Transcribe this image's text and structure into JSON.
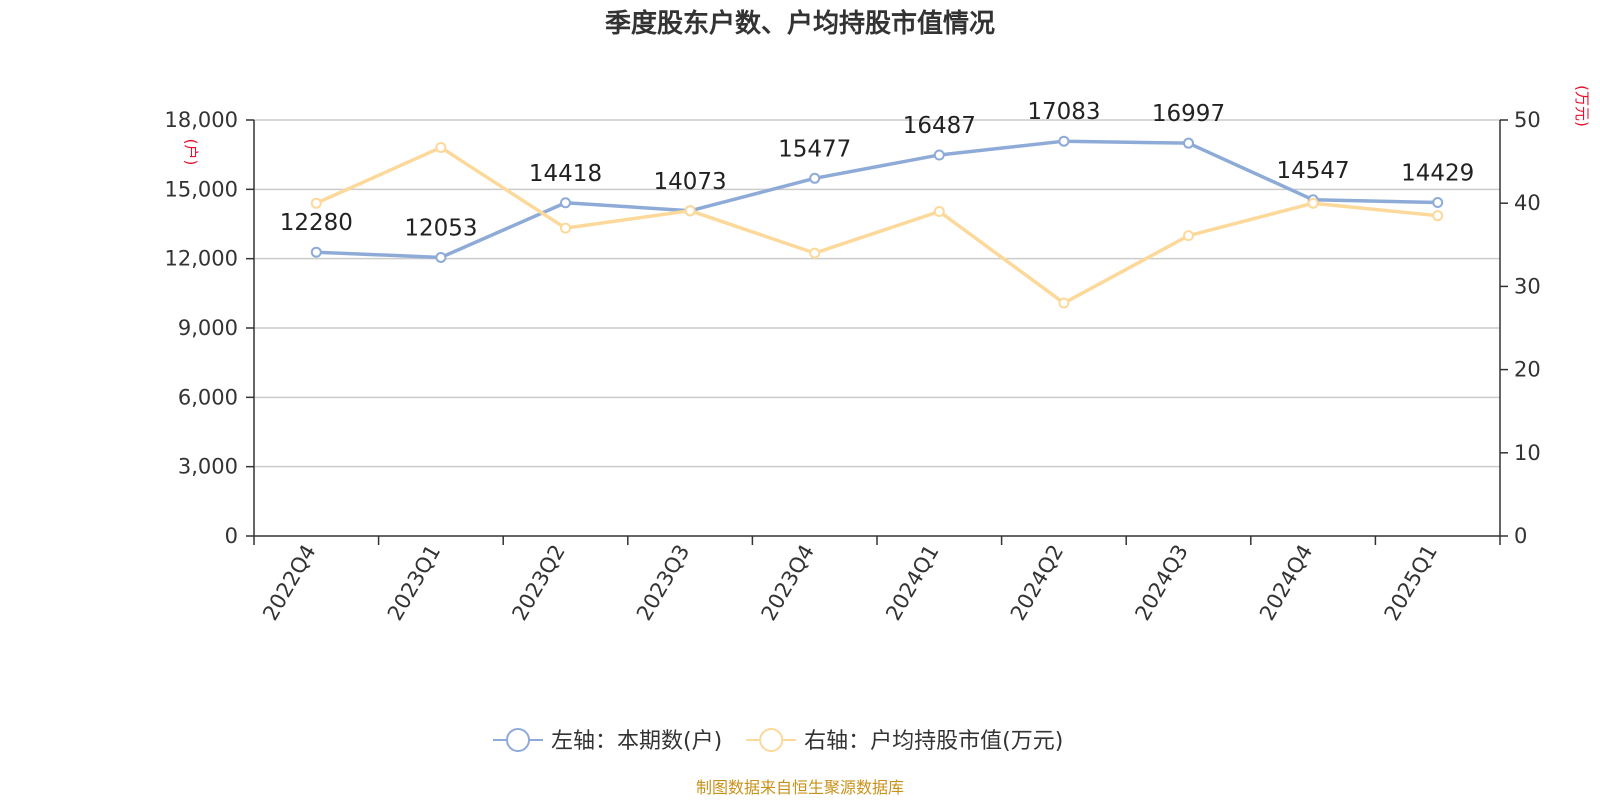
{
  "chart_data": {
    "type": "line",
    "title": "季度股东户数、户均持股市值情况",
    "categories": [
      "2022Q4",
      "2023Q1",
      "2023Q2",
      "2023Q3",
      "2023Q4",
      "2024Q1",
      "2024Q2",
      "2024Q3",
      "2024Q4",
      "2025Q1"
    ],
    "left_axis": {
      "unit": "(户)",
      "ylim": [
        0,
        18000
      ],
      "ticks": [
        0,
        3000,
        6000,
        9000,
        12000,
        15000,
        18000
      ],
      "tick_labels": [
        "0",
        "3,000",
        "6,000",
        "9,000",
        "12,000",
        "15,000",
        "18,000"
      ]
    },
    "right_axis": {
      "unit": "(万元)",
      "ylim": [
        0,
        50
      ],
      "ticks": [
        0,
        10,
        20,
        30,
        40,
        50
      ],
      "tick_labels": [
        "0",
        "10",
        "20",
        "30",
        "40",
        "50"
      ]
    },
    "series": [
      {
        "name": "左轴：本期数(户)",
        "axis": "left",
        "color": "#8eabd8",
        "values": [
          12280,
          12053,
          14418,
          14073,
          15477,
          16487,
          17083,
          16997,
          14547,
          14429
        ],
        "labels": [
          "12280",
          "12053",
          "14418",
          "14073",
          "15477",
          "16487",
          "17083",
          "16997",
          "14547",
          "14429"
        ]
      },
      {
        "name": "右轴：户均持股市值(万元)",
        "axis": "right",
        "color": "#fcd99a",
        "values": [
          40.0,
          46.7,
          37.0,
          39.1,
          34.0,
          39.0,
          28.0,
          36.1,
          40.0,
          38.5
        ]
      }
    ],
    "grid": true,
    "legend_position": "bottom-center",
    "source": "制图数据来自恒生聚源数据库"
  }
}
